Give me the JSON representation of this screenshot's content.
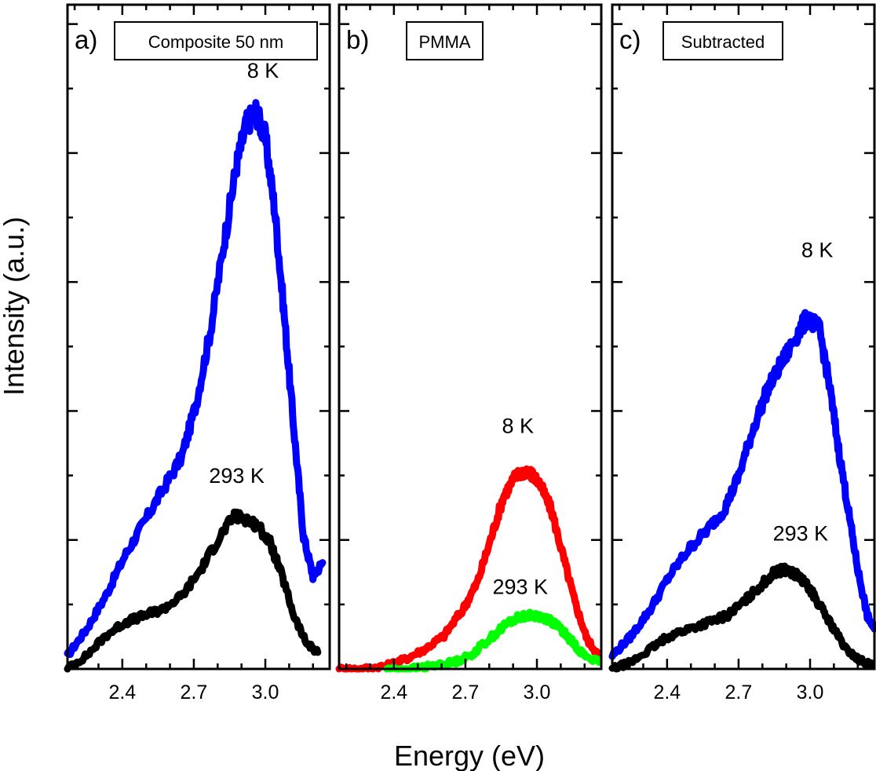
{
  "figure": {
    "ylabel": "Intensity (a.u.)",
    "xlabel": "Energy (eV)"
  },
  "chart_data": [
    {
      "type": "line",
      "panel": "a)",
      "title": "Composite 50 nm",
      "xlabel": "Energy (eV)",
      "ylabel": "Intensity (a.u.)",
      "xlim": [
        2.17,
        3.27
      ],
      "ylim": [
        0,
        1
      ],
      "xticks": [
        2.4,
        2.7,
        3.0
      ],
      "xtick_labels": [
        "2.4",
        "2.7",
        "3.0"
      ],
      "series": [
        {
          "name": "8 K",
          "color": "#0000ff",
          "x": [
            2.17,
            2.25,
            2.33,
            2.41,
            2.49,
            2.57,
            2.65,
            2.71,
            2.77,
            2.83,
            2.88,
            2.92,
            2.96,
            3.0,
            3.04,
            3.08,
            3.12,
            3.16,
            3.2,
            3.24
          ],
          "y": [
            0.02,
            0.06,
            0.11,
            0.17,
            0.22,
            0.27,
            0.32,
            0.4,
            0.51,
            0.65,
            0.76,
            0.82,
            0.84,
            0.8,
            0.69,
            0.53,
            0.36,
            0.2,
            0.14,
            0.16
          ],
          "annotation": "8 K",
          "annotation_x": 2.99,
          "annotation_y": 0.89
        },
        {
          "name": "293 K",
          "color": "#000000",
          "x": [
            2.17,
            2.25,
            2.33,
            2.41,
            2.49,
            2.57,
            2.65,
            2.73,
            2.81,
            2.87,
            2.92,
            2.97,
            3.02,
            3.07,
            3.12,
            3.17,
            3.22
          ],
          "y": [
            0.0,
            0.02,
            0.05,
            0.07,
            0.08,
            0.09,
            0.11,
            0.15,
            0.2,
            0.23,
            0.226,
            0.215,
            0.19,
            0.14,
            0.08,
            0.04,
            0.025
          ],
          "annotation": "293 K",
          "annotation_x": 2.88,
          "annotation_y": 0.28
        }
      ]
    },
    {
      "type": "line",
      "panel": "b)",
      "title": "PMMA",
      "xlabel": "Energy (eV)",
      "ylabel": "Intensity (a.u.)",
      "xlim": [
        2.17,
        3.27
      ],
      "ylim": [
        0,
        1
      ],
      "xticks": [
        2.4,
        2.7,
        3.0
      ],
      "xtick_labels": [
        "2.4",
        "2.7",
        "3.0"
      ],
      "series": [
        {
          "name": "8 K",
          "color": "#ff0000",
          "x": [
            2.17,
            2.27,
            2.37,
            2.45,
            2.53,
            2.61,
            2.69,
            2.75,
            2.81,
            2.86,
            2.91,
            2.96,
            3.01,
            3.06,
            3.11,
            3.16,
            3.21,
            3.26
          ],
          "y": [
            0.0,
            0.0,
            0.005,
            0.015,
            0.03,
            0.05,
            0.09,
            0.13,
            0.2,
            0.26,
            0.29,
            0.3,
            0.28,
            0.24,
            0.17,
            0.1,
            0.045,
            0.02
          ],
          "annotation": "8 K",
          "annotation_x": 2.92,
          "annotation_y": 0.355
        },
        {
          "name": "293 K",
          "color": "#00ff00",
          "x": [
            2.37,
            2.47,
            2.57,
            2.65,
            2.72,
            2.8,
            2.88,
            2.94,
            3.0,
            3.05,
            3.1,
            3.15,
            3.2,
            3.26
          ],
          "y": [
            0.0,
            0.0,
            0.005,
            0.01,
            0.02,
            0.045,
            0.07,
            0.08,
            0.08,
            0.075,
            0.06,
            0.04,
            0.02,
            0.01
          ],
          "annotation": "293 K",
          "annotation_x": 2.93,
          "annotation_y": 0.113
        }
      ]
    },
    {
      "type": "line",
      "panel": "c)",
      "title": "Subtracted",
      "xlabel": "Energy (eV)",
      "ylabel": "Intensity (a.u.)",
      "xlim": [
        2.17,
        3.27
      ],
      "ylim": [
        0,
        1
      ],
      "xticks": [
        2.4,
        2.7,
        3.0
      ],
      "xtick_labels": [
        "2.4",
        "2.7",
        "3.0"
      ],
      "series": [
        {
          "name": "8 K",
          "color": "#0000ff",
          "x": [
            2.17,
            2.25,
            2.33,
            2.41,
            2.49,
            2.57,
            2.64,
            2.7,
            2.76,
            2.82,
            2.88,
            2.94,
            2.99,
            3.04,
            3.08,
            3.12,
            3.16,
            3.2,
            3.24,
            3.27
          ],
          "y": [
            0.02,
            0.05,
            0.09,
            0.14,
            0.18,
            0.21,
            0.24,
            0.29,
            0.36,
            0.42,
            0.46,
            0.5,
            0.53,
            0.51,
            0.43,
            0.33,
            0.24,
            0.15,
            0.08,
            0.06
          ],
          "annotation": "8 K",
          "annotation_x": 3.03,
          "annotation_y": 0.62
        },
        {
          "name": "293 K",
          "color": "#000000",
          "x": [
            2.17,
            2.25,
            2.33,
            2.41,
            2.49,
            2.57,
            2.65,
            2.72,
            2.79,
            2.85,
            2.9,
            2.95,
            3.0,
            3.05,
            3.1,
            3.15,
            3.2,
            3.26
          ],
          "y": [
            0.0,
            0.01,
            0.03,
            0.05,
            0.06,
            0.07,
            0.08,
            0.1,
            0.125,
            0.145,
            0.15,
            0.14,
            0.12,
            0.09,
            0.06,
            0.03,
            0.015,
            0.005
          ],
          "annotation": "293 K",
          "annotation_x": 2.96,
          "annotation_y": 0.193
        }
      ]
    }
  ]
}
